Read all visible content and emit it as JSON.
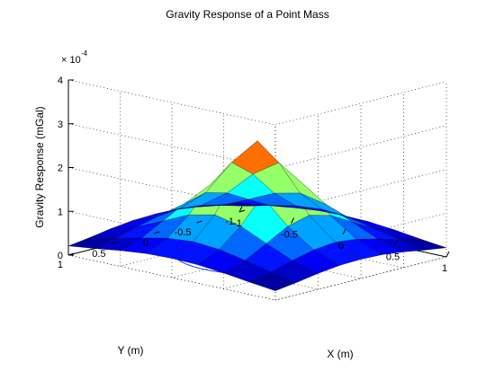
{
  "chart_data": {
    "type": "surface3d",
    "title": "Gravity Response of a Point Mass",
    "xlabel": "X (m)",
    "ylabel": "Y (m)",
    "zlabel": "Gravity Response (mGal)",
    "zscale_label": "× 10",
    "zscale_exponent": "-4",
    "xlim": [
      -1,
      1
    ],
    "ylim": [
      -1,
      1
    ],
    "zlim": [
      0,
      4
    ],
    "x_ticks": [
      "-1",
      "-0.5",
      "0",
      "0.5",
      "1"
    ],
    "y_ticks": [
      "-1",
      "-0.5",
      "0",
      "0.5",
      "1"
    ],
    "z_ticks": [
      "0",
      "1",
      "2",
      "3",
      "4"
    ],
    "grid": true,
    "box": "open (back panes)",
    "colormap": "jet",
    "surface": {
      "x": [
        -1,
        -0.75,
        -0.5,
        -0.25,
        0,
        0.25,
        0.5,
        0.75,
        1
      ],
      "y": [
        -1,
        -0.75,
        -0.5,
        -0.25,
        0,
        0.25,
        0.5,
        0.75,
        1
      ],
      "z_units_e-4": [
        [
          0.21,
          0.28,
          0.36,
          0.42,
          0.44,
          0.42,
          0.36,
          0.28,
          0.21
        ],
        [
          0.28,
          0.39,
          0.53,
          0.65,
          0.7,
          0.65,
          0.53,
          0.39,
          0.28
        ],
        [
          0.36,
          0.53,
          0.79,
          1.06,
          1.19,
          1.06,
          0.79,
          0.53,
          0.36
        ],
        [
          0.42,
          0.65,
          1.06,
          1.62,
          2.01,
          1.62,
          1.06,
          0.65,
          0.42
        ],
        [
          0.44,
          0.7,
          1.19,
          2.01,
          2.63,
          2.01,
          1.19,
          0.7,
          0.44
        ],
        [
          0.42,
          0.65,
          1.06,
          1.62,
          2.01,
          1.62,
          1.06,
          0.65,
          0.42
        ],
        [
          0.36,
          0.53,
          0.79,
          1.06,
          1.19,
          1.06,
          0.79,
          0.53,
          0.36
        ],
        [
          0.28,
          0.39,
          0.53,
          0.65,
          0.7,
          0.65,
          0.53,
          0.39,
          0.28
        ],
        [
          0.21,
          0.28,
          0.36,
          0.42,
          0.44,
          0.42,
          0.36,
          0.28,
          0.21
        ]
      ]
    },
    "contour": {
      "level_e-4": 0.7,
      "color": "#1f3fd6"
    },
    "colors": {
      "edge": "#000000",
      "grid": "#000000"
    }
  }
}
